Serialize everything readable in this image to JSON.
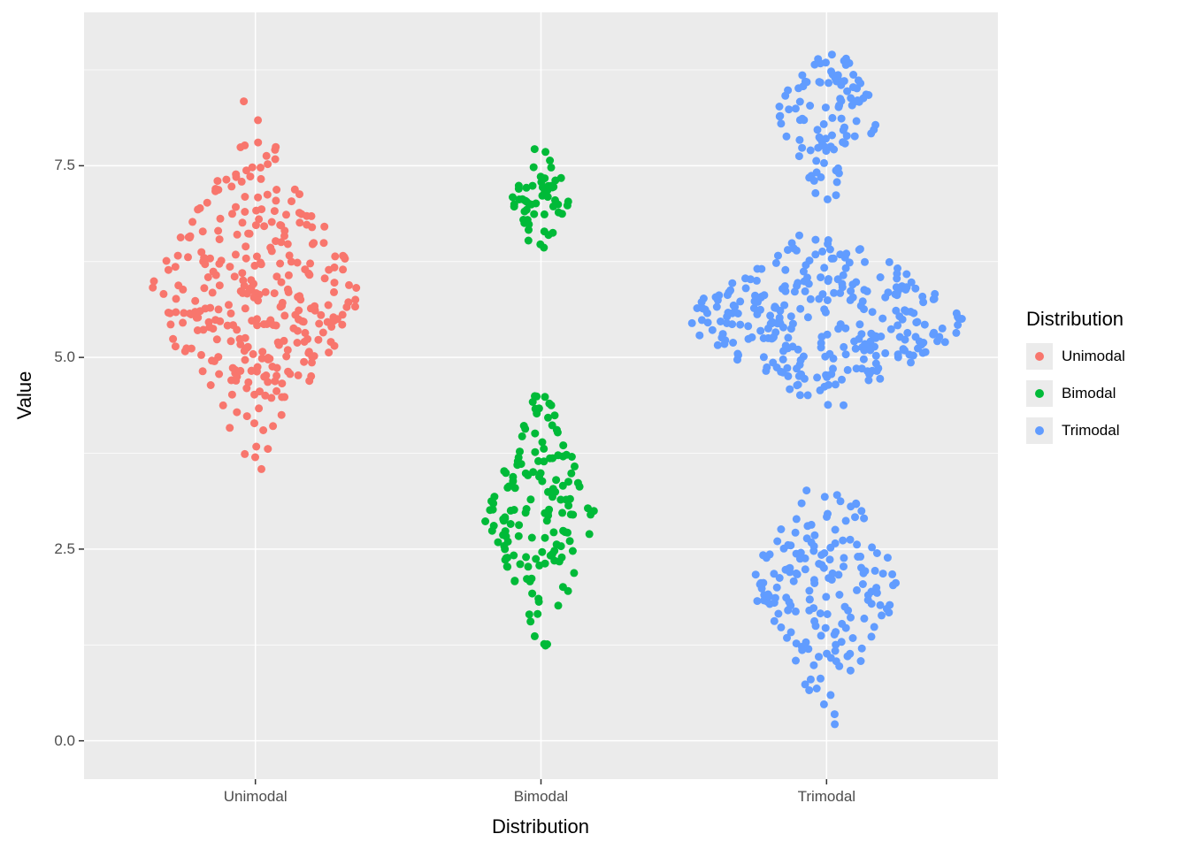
{
  "figure": {
    "background": "#FFFFFF",
    "panel_background": "#EBEBEB",
    "grid_major_color": "#FFFFFF",
    "grid_minor_color": "#FFFFFF",
    "tick_mark_color": "#333333",
    "tick_label_color": "#4D4D4D"
  },
  "axes": {
    "x": {
      "title": "Distribution",
      "categories": [
        "Unimodal",
        "Bimodal",
        "Trimodal"
      ]
    },
    "y": {
      "title": "Value",
      "ticks": [
        "0.0",
        "2.5",
        "5.0",
        "7.5"
      ],
      "tick_values": [
        0,
        2.5,
        5,
        7.5
      ],
      "minor_values": [
        1.25,
        3.75,
        6.25,
        8.75
      ],
      "domain": [
        -0.5,
        9.5
      ]
    }
  },
  "legend": {
    "title": "Distribution",
    "items": [
      {
        "label": "Unimodal",
        "color": "#F8766D"
      },
      {
        "label": "Bimodal",
        "color": "#00BA38"
      },
      {
        "label": "Trimodal",
        "color": "#619CFF"
      }
    ]
  },
  "chart_data": {
    "type": "scatter",
    "variant": "sina-beeswarm",
    "title": "",
    "xlabel": "Distribution",
    "ylabel": "Value",
    "categories": [
      "Unimodal",
      "Bimodal",
      "Trimodal"
    ],
    "ylim": [
      -0.5,
      9.5
    ],
    "x_domain": [
      0.4,
      3.6
    ],
    "legend_position": "right",
    "grid": true,
    "point_radius": 4.5,
    "seed": 42,
    "series": [
      {
        "name": "Unimodal",
        "color": "#F8766D",
        "x": 1,
        "clusters": [
          {
            "mean": 5.85,
            "sd": 0.95,
            "n": 320,
            "clip": [
              3.2,
              9.05
            ],
            "max_width": 0.36
          }
        ]
      },
      {
        "name": "Bimodal",
        "color": "#00BA38",
        "x": 2,
        "clusters": [
          {
            "mean": 7.05,
            "sd": 0.4,
            "n": 55,
            "clip": [
              6.2,
              7.9
            ],
            "max_width": 0.1
          },
          {
            "mean": 2.9,
            "sd": 0.72,
            "n": 150,
            "clip": [
              1.05,
              4.5
            ],
            "max_width": 0.2
          }
        ]
      },
      {
        "name": "Trimodal",
        "color": "#619CFF",
        "x": 3,
        "clusters": [
          {
            "mean": 8.15,
            "sd": 0.5,
            "n": 100,
            "clip": [
              6.75,
              9.0
            ],
            "max_width": 0.18
          },
          {
            "mean": 5.5,
            "sd": 0.55,
            "n": 300,
            "clip": [
              4.3,
              6.6
            ],
            "max_width": 0.48
          },
          {
            "mean": 2.05,
            "sd": 0.75,
            "n": 170,
            "clip": [
              -0.05,
              3.6
            ],
            "max_width": 0.26
          }
        ]
      }
    ]
  }
}
